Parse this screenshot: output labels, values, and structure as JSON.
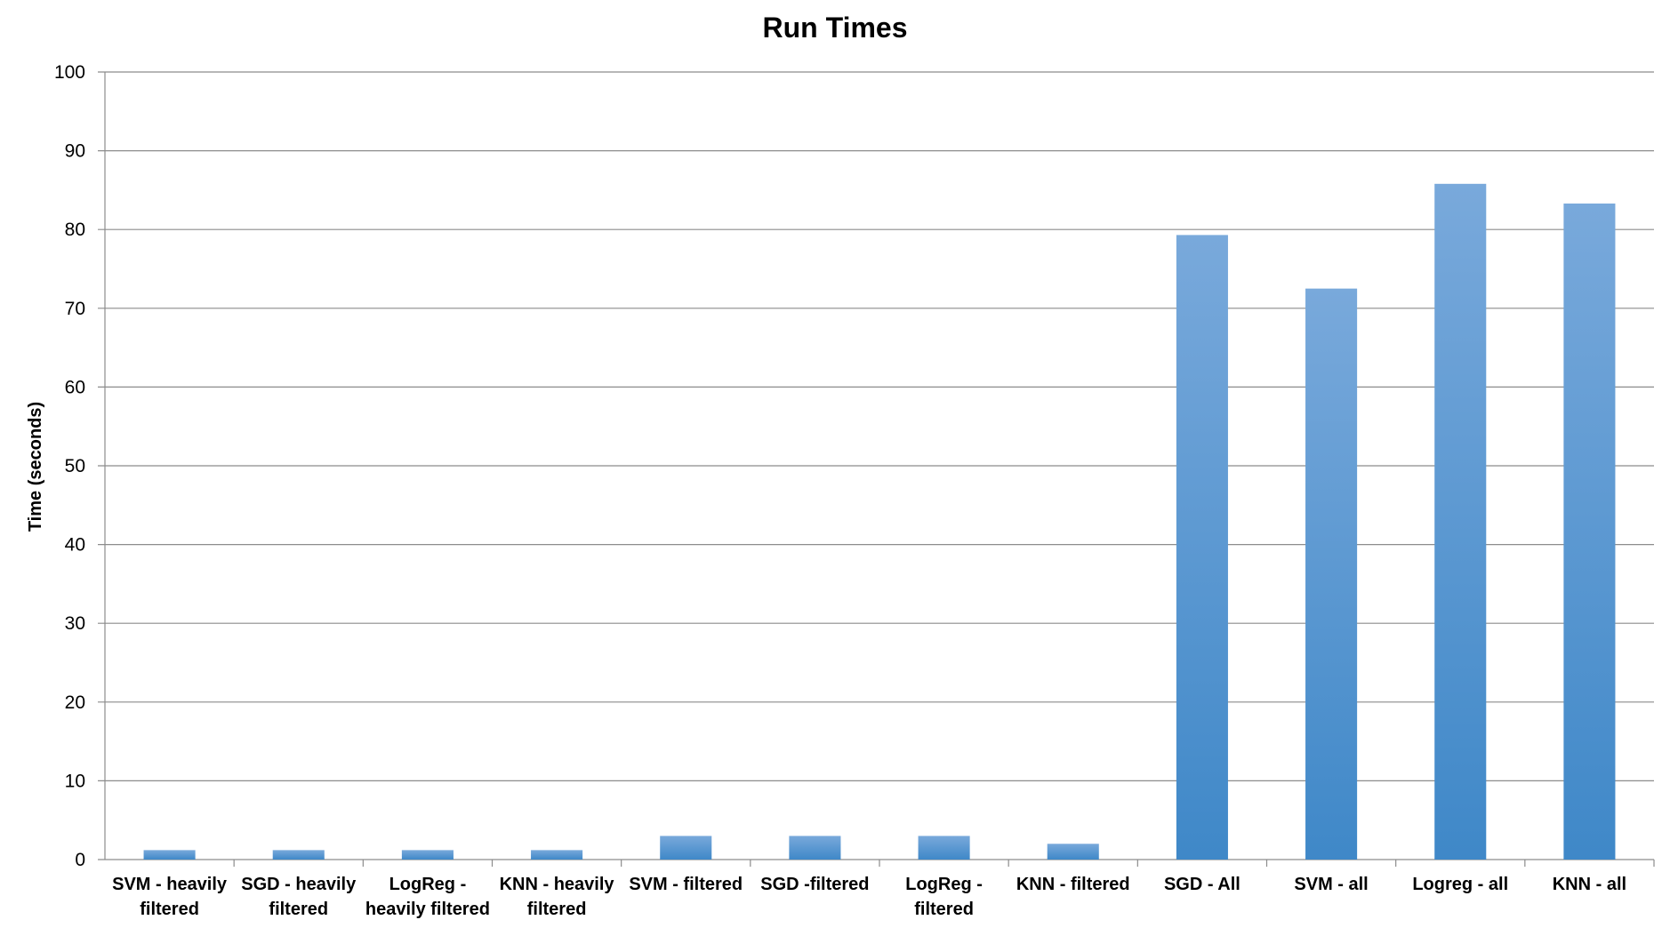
{
  "chart_data": {
    "type": "bar",
    "title": "Run Times",
    "xlabel": "",
    "ylabel": "Time (seconds)",
    "ylim": [
      0,
      100
    ],
    "yticks": [
      0,
      10,
      20,
      30,
      40,
      50,
      60,
      70,
      80,
      90,
      100
    ],
    "grid": true,
    "legend": "none",
    "categories": [
      [
        "SVM - heavily",
        "filtered"
      ],
      [
        "SGD - heavily",
        "filtered"
      ],
      [
        "LogReg -",
        "heavily filtered"
      ],
      [
        "KNN - heavily",
        "filtered"
      ],
      [
        "SVM - filtered"
      ],
      [
        "SGD -filtered"
      ],
      [
        "LogReg -",
        "filtered"
      ],
      [
        "KNN - filtered"
      ],
      [
        "SGD - All"
      ],
      [
        "SVM - all"
      ],
      [
        "Logreg - all"
      ],
      [
        "KNN - all"
      ]
    ],
    "values": [
      1.2,
      1.2,
      1.2,
      1.2,
      3.0,
      3.0,
      3.0,
      2.0,
      79.3,
      72.5,
      85.8,
      83.3
    ],
    "colors": {
      "bar_top": "#79a9db",
      "bar_bottom": "#3f88c8",
      "grid": "#8c8c8c"
    }
  }
}
